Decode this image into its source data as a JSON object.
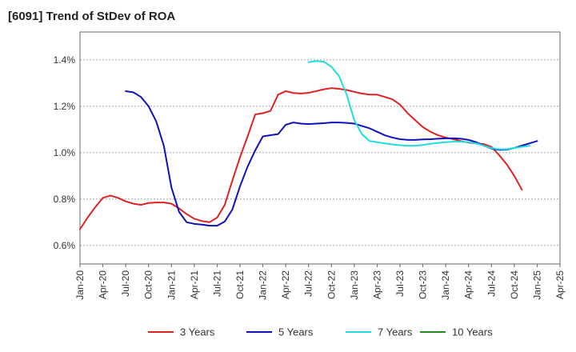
{
  "chart_data": {
    "type": "line",
    "title": "[6091]  Trend of StDev of ROA",
    "xlabel": "",
    "ylabel": "",
    "x_tick_labels": [
      "Jan-20",
      "Apr-20",
      "Jul-20",
      "Oct-20",
      "Jan-21",
      "Apr-21",
      "Jul-21",
      "Oct-21",
      "Jan-22",
      "Apr-22",
      "Jul-22",
      "Oct-22",
      "Jan-23",
      "Apr-23",
      "Jul-23",
      "Oct-23",
      "Jan-24",
      "Apr-24",
      "Jul-24",
      "Oct-24",
      "Jan-25",
      "Apr-25"
    ],
    "y_ticks": [
      0.6,
      0.8,
      1.0,
      1.2,
      1.4
    ],
    "y_tick_labels": [
      "0.6%",
      "0.8%",
      "1.0%",
      "1.2%",
      "1.4%"
    ],
    "ylim": [
      0.52,
      1.52
    ],
    "grid": "horizontal-dashed",
    "legend_position": "bottom",
    "series": [
      {
        "name": "3 Years",
        "color": "#dd2222",
        "start": "Jan-20",
        "values": [
          0.67,
          0.72,
          0.765,
          0.805,
          0.815,
          0.805,
          0.79,
          0.78,
          0.775,
          0.783,
          0.785,
          0.785,
          0.78,
          0.76,
          0.735,
          0.715,
          0.705,
          0.7,
          0.72,
          0.775,
          0.88,
          0.98,
          1.07,
          1.165,
          1.17,
          1.18,
          1.25,
          1.265,
          1.257,
          1.255,
          1.258,
          1.265,
          1.273,
          1.278,
          1.275,
          1.27,
          1.262,
          1.255,
          1.25,
          1.25,
          1.24,
          1.23,
          1.207,
          1.17,
          1.14,
          1.11,
          1.09,
          1.075,
          1.065,
          1.058,
          1.05,
          1.043,
          1.04,
          1.037,
          1.025,
          0.99,
          0.95,
          0.9,
          0.84
        ]
      },
      {
        "name": "5 Years",
        "color": "#1111bb",
        "start": "Jul-20",
        "values": [
          1.265,
          1.26,
          1.24,
          1.2,
          1.135,
          1.03,
          0.85,
          0.745,
          0.7,
          0.693,
          0.69,
          0.685,
          0.685,
          0.703,
          0.755,
          0.855,
          0.94,
          1.01,
          1.07,
          1.075,
          1.08,
          1.12,
          1.13,
          1.125,
          1.123,
          1.125,
          1.127,
          1.13,
          1.13,
          1.128,
          1.125,
          1.115,
          1.105,
          1.09,
          1.075,
          1.065,
          1.058,
          1.055,
          1.055,
          1.057,
          1.058,
          1.06,
          1.062,
          1.062,
          1.06,
          1.055,
          1.045,
          1.03,
          1.018,
          1.012,
          1.013,
          1.02,
          1.03,
          1.04,
          1.05
        ]
      },
      {
        "name": "7 Years",
        "color": "#22dddd",
        "start": "Jul-22",
        "values": [
          1.39,
          1.395,
          1.392,
          1.37,
          1.33,
          1.25,
          1.14,
          1.08,
          1.05,
          1.045,
          1.04,
          1.035,
          1.032,
          1.03,
          1.03,
          1.033,
          1.038,
          1.042,
          1.045,
          1.047,
          1.047,
          1.045,
          1.04,
          1.03,
          1.02,
          1.015,
          1.015,
          1.02,
          1.025,
          1.03
        ]
      },
      {
        "name": "10 Years",
        "color": "#228822",
        "start": "Jan-25",
        "values": []
      }
    ]
  }
}
